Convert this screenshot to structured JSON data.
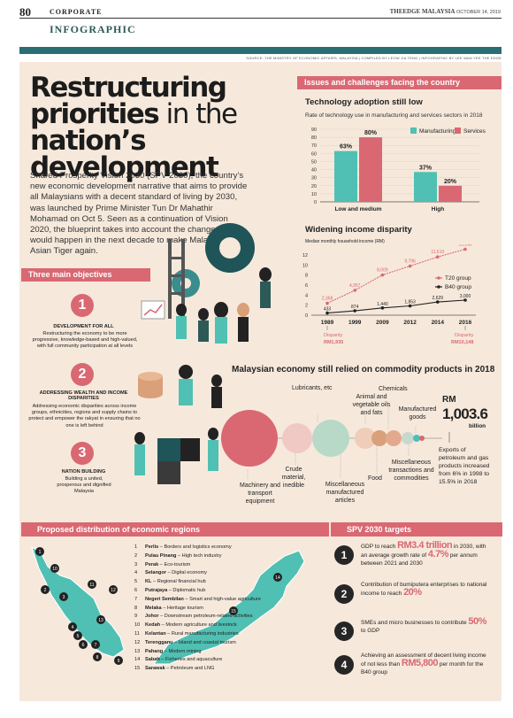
{
  "header": {
    "page_number": "80",
    "section": "CORPORATE",
    "publication": "THEEDGE MALAYSIA",
    "date": "OCTOBER 14, 2019"
  },
  "infographic_label": "INFOGRAPHIC",
  "source_line": "SOURCE: THE MINISTRY OF ECONOMIC AFFAIRS, MALAYSIA  |  COMPILED BY LEOW JIA TENG  |  INFOGRAPHIC BY LEE WAN YEE THE EDGE",
  "title": {
    "line1": "Restructuring",
    "line2_bold": "priorities",
    "line2_light": " in the",
    "line3": "nation’s development"
  },
  "intro": "Shared Prosperity Vision 2030 (SPV 2030), the country’s new economic development narrative that aims to provide all Malaysians with a decent standard of living by 2030, was launched by Prime Minister Tun Dr Mahathir Mohamad on Oct 5. Seen as a continuation of Vision 2020, the blueprint takes into account the changes that would happen in the next decade to make Malaysia an Asian Tiger again.",
  "issues_header": "Issues and challenges facing the country",
  "tech": {
    "title": "Technology adoption still low",
    "subtitle": "Rate of technology use in manufacturing and services sectors in 2018",
    "chart_data": {
      "type": "bar",
      "categories": [
        "Low and medium",
        "High"
      ],
      "series": [
        {
          "name": "Manufacturing",
          "values": [
            63,
            37
          ],
          "labels": [
            "63%",
            "37%"
          ],
          "color": "#4fc0b3"
        },
        {
          "name": "Services",
          "values": [
            80,
            20
          ],
          "labels": [
            "80%",
            "20%"
          ],
          "color": "#d96873"
        }
      ],
      "ylim": [
        0,
        90
      ],
      "yticks": [
        "0",
        "10",
        "20",
        "30",
        "40",
        "50",
        "60",
        "70",
        "80",
        "90"
      ],
      "legend": "top-right"
    }
  },
  "income": {
    "title": "Widening income disparity",
    "subtitle": "Median monthly household income (RM)",
    "chart_data": {
      "type": "line",
      "x": [
        "1989",
        "1999",
        "2009",
        "2012",
        "2014",
        "2016"
      ],
      "series": [
        {
          "name": "T20 group",
          "values": [
            2368,
            4957,
            8009,
            9796,
            11610,
            13148
          ],
          "labels": [
            "2,368",
            "4,957",
            "8,009",
            "9,796",
            "11,610",
            "13,148"
          ],
          "color": "#d96873"
        },
        {
          "name": "B40 group",
          "values": [
            433,
            874,
            1440,
            1853,
            2629,
            3000
          ],
          "labels": [
            "433",
            "874",
            "1,440",
            "1,853",
            "2,629",
            "3,000"
          ],
          "color": "#222222"
        }
      ],
      "ylim": [
        0,
        12
      ],
      "yticks": [
        "0",
        "2",
        "4",
        "6",
        "8",
        "10",
        "12"
      ],
      "legend": "right"
    },
    "disparity_label": "Disparity",
    "disparity_1989": "RM1,935",
    "disparity_2016": "RM10,148"
  },
  "objectives_header": "Three main objectives",
  "objectives": [
    {
      "num": "1",
      "title": "DEVELOPMENT FOR ALL",
      "text": "Restructuring the economy to be more progressive, knowledge-based and high-valued, with full community participation at all levels"
    },
    {
      "num": "2",
      "title": "ADDRESSING WEALTH AND INCOME DISPARITIES",
      "text": "Addressing economic disparities across income groups, ethnicities, regions and supply chains to protect and empower the rakyat in ensuring that no one is left behind"
    },
    {
      "num": "3",
      "title": "NATION BUILDING",
      "text": "Building a united, prosperous and dignified Malaysia"
    }
  ],
  "commodity": {
    "title": "Malaysian economy still relied on commodity products in 2018",
    "total_prefix": "RM",
    "total_value": "1,003.6",
    "total_unit": "billion",
    "labels": {
      "lubricants": "Lubricants, etc",
      "animal": "Animal and vegetable oils and fats",
      "chemicals": "Chemicals",
      "manufactured": "Manufactured goods",
      "machinery": "Machinery and transport equipment",
      "crude": "Crude material, inedible",
      "misc_articles": "Miscellaneous manufactured articles",
      "food": "Food",
      "misc_transactions": "Miscellaneous transactions and commodities"
    },
    "note": "Exports of petroleum and gas products increased from 6% in 1998 to 15.5% in 2018"
  },
  "regions_header": "Proposed distribution of economic regions",
  "regions": [
    {
      "n": "1",
      "state": "Perlis",
      "focus": " – Borders and logistics economy"
    },
    {
      "n": "2",
      "state": "Pulau Pinang",
      "focus": " – High tech industry"
    },
    {
      "n": "3",
      "state": "Perak",
      "focus": " – Eco-tourism"
    },
    {
      "n": "4",
      "state": "Selangor",
      "focus": " – Digital economy"
    },
    {
      "n": "5",
      "state": "KL",
      "focus": " – Regional financial hub"
    },
    {
      "n": "6",
      "state": "Putrajaya",
      "focus": " – Diplomatic hub"
    },
    {
      "n": "7",
      "state": "Negeri Sembilan",
      "focus": " – Smart and high-value agriculture"
    },
    {
      "n": "8",
      "state": "Melaka",
      "focus": " – Heritage tourism"
    },
    {
      "n": "9",
      "state": "Johor",
      "focus": " – Downstream petroleum-related activities"
    },
    {
      "n": "10",
      "state": "Kedah",
      "focus": " – Modern agriculture and livestock"
    },
    {
      "n": "11",
      "state": "Kelantan",
      "focus": " – Rural manufacturing industries"
    },
    {
      "n": "12",
      "state": "Terengganu",
      "focus": " – Island and coastal tourism"
    },
    {
      "n": "13",
      "state": "Pahang",
      "focus": " – Modern mining"
    },
    {
      "n": "14",
      "state": "Sabah",
      "focus": " – Fisheries and aquaculture"
    },
    {
      "n": "15",
      "state": "Sarawak",
      "focus": " – Petroleum and LNG"
    }
  ],
  "targets_header": "SPV 2030 targets",
  "targets": [
    {
      "num": "1",
      "pre": "GDP to reach ",
      "big1": "RM3.4 trillion",
      "mid": " in 2030, with an average growth rate of ",
      "big2": "4.7%",
      "post": " per annum between 2021 and 2030"
    },
    {
      "num": "2",
      "pre": "Contribution of bumiputera enterprises to national income to reach ",
      "big1": "20%",
      "mid": "",
      "big2": "",
      "post": ""
    },
    {
      "num": "3",
      "pre": "SMEs and micro businesses to contribute ",
      "big1": "50%",
      "mid": " to GDP",
      "big2": "",
      "post": ""
    },
    {
      "num": "4",
      "pre": "Achieving an assessment of decent living income of not less than ",
      "big1": "RM5,800",
      "mid": " per month for the B40 group",
      "big2": "",
      "post": ""
    }
  ]
}
